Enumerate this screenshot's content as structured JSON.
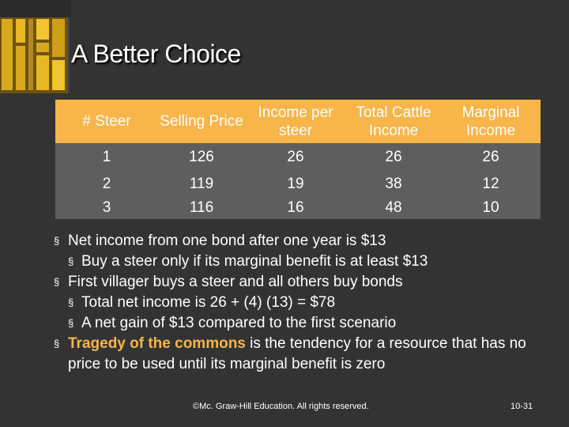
{
  "slide": {
    "title": "A Better Choice",
    "table": {
      "headers": [
        "# Steer",
        "Selling Price",
        "Income per steer",
        "Total Cattle Income",
        "Marginal Income"
      ],
      "rows": [
        [
          "1",
          "126",
          "26",
          "26",
          "26"
        ],
        [
          "2",
          "119",
          "19",
          "38",
          "12"
        ],
        [
          "3",
          "116",
          "16",
          "48",
          "10"
        ]
      ]
    },
    "bullets": [
      "Net income from one bond after one year is $13",
      "Buy a steer only if its marginal benefit is at least $13",
      "First villager buys a steer and all others buy bonds",
      "Total net income is 26 + (4) (13) = $78",
      "A net gain of $13 compared to the first scenario",
      {
        "highlight": "Tragedy of the commons",
        "rest": " is the tendency for a resource that has no price to be used until its marginal benefit is zero"
      }
    ],
    "bullet_marker": "§",
    "footer": {
      "copyright": "©Mc. Graw-Hill Education. All rights reserved.",
      "page": "10-31"
    }
  },
  "colors": {
    "background": "#333333",
    "header_fill": "#f7b54a",
    "row_fill": "#5e5e5e",
    "highlight": "#f7b54a"
  }
}
